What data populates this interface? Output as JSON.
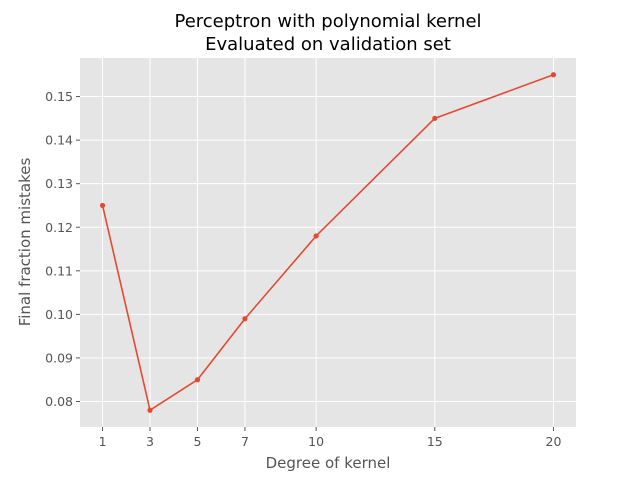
{
  "chart_data": {
    "type": "line",
    "title_lines": [
      "Perceptron with polynomial kernel",
      "Evaluated on validation set"
    ],
    "xlabel": "Degree of kernel",
    "ylabel": "Final fraction mistakes",
    "x": [
      1,
      3,
      5,
      7,
      10,
      15,
      20
    ],
    "y": [
      0.125,
      0.078,
      0.085,
      0.099,
      0.118,
      0.145,
      0.155
    ],
    "xticks": [
      1,
      3,
      5,
      7,
      10,
      15,
      20
    ],
    "yticks": [
      0.08,
      0.09,
      0.1,
      0.11,
      0.12,
      0.13,
      0.14,
      0.15
    ],
    "ytick_labels": [
      "0.08",
      "0.09",
      "0.10",
      "0.11",
      "0.12",
      "0.13",
      "0.14",
      "0.15"
    ],
    "xlim": [
      0.05,
      20.95
    ],
    "ylim": [
      0.07415,
      0.15885
    ],
    "grid": true,
    "style": "ggplot",
    "colors": {
      "plot_background": "#e5e5e5",
      "grid": "#ffffff",
      "line": "#e24a33",
      "text": "#555555"
    }
  }
}
